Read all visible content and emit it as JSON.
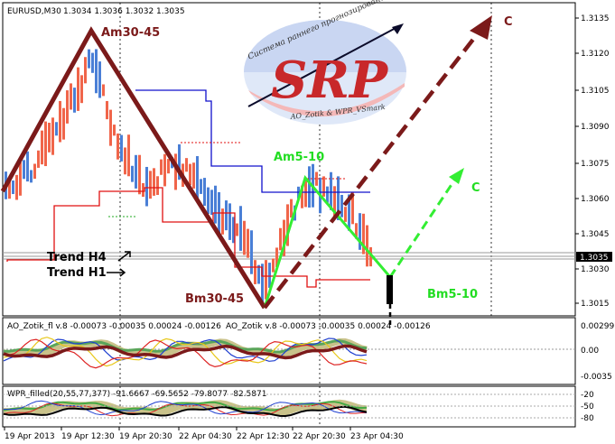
{
  "header": {
    "symbol": "EURUSD,M30",
    "ohlc": "1.3034 1.3036 1.3032 1.3035"
  },
  "price_axis": {
    "ticks": [
      "1.3135",
      "1.3120",
      "1.3105",
      "1.3090",
      "1.3075",
      "1.3060",
      "1.3045",
      "1.3030",
      "1.3015"
    ],
    "current_price": "1.3035"
  },
  "time_axis": {
    "ticks": [
      "19 Apr 2013",
      "19 Apr 12:30",
      "19 Apr 20:30",
      "22 Apr 04:30",
      "22 Apr 12:30",
      "22 Apr 20:30",
      "23 Apr 04:30"
    ]
  },
  "annotations": {
    "am30": "Am30-45",
    "bm30": "Bm30-45",
    "am5": "Am5-10",
    "bm5": "Bm5-10",
    "c_dark": "C",
    "c_green": "C",
    "trend_h4": "Trend H4",
    "trend_h1": "Trend H1"
  },
  "logo": {
    "arc_text": "Система раннего прогнозирования",
    "letters": "SRP",
    "sub_text": "AO_Zotik & WPR_VSmark"
  },
  "ao_panel": {
    "header_left": "AO_Zotik_fl v.8 -0.00073 -0.00035 0.00024 -0.00126",
    "header_right": "AO_Zotik v.8 -0.00073 -0.00035 0.00024 -0.00126",
    "ticks": [
      "0.00299",
      "0.00",
      "-0.0035"
    ]
  },
  "wpr_panel": {
    "header": "WPR_filled(20,55,77,377) -91.6667 -69.5652 -79.8077 -82.5871",
    "ticks": [
      "-20",
      "-50",
      "-80"
    ]
  },
  "colors": {
    "bull": "#4a7fd6",
    "bear": "#f0654a",
    "zigzag_big": "#7b1a1a",
    "zigzag_small": "#33ee33",
    "resistance": "#1010cc",
    "support": "#e01010"
  }
}
